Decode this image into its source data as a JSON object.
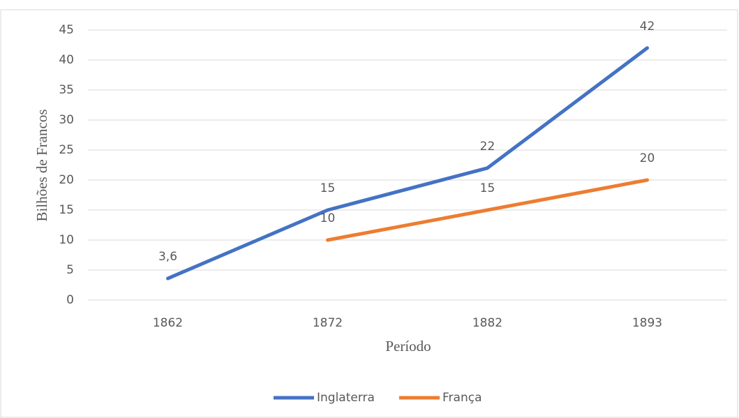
{
  "chart_data": {
    "type": "line",
    "categories": [
      "1862",
      "1872",
      "1882",
      "1893"
    ],
    "series": [
      {
        "name": "Inglaterra",
        "color": "#4472c4",
        "values": [
          3.6,
          15,
          22,
          42
        ],
        "value_labels": [
          "3,6",
          "15",
          "22",
          "42"
        ]
      },
      {
        "name": "França",
        "color": "#ed7d31",
        "values": [
          null,
          10,
          15,
          20
        ],
        "value_labels": [
          null,
          "10",
          "15",
          "20"
        ]
      }
    ],
    "x_label": "Período",
    "y_label": "Bilhões de Francos",
    "ylim": [
      0,
      45
    ],
    "yticks": [
      0,
      5,
      10,
      15,
      20,
      25,
      30,
      35,
      40,
      45
    ],
    "grid": true,
    "legend": "bottom"
  }
}
